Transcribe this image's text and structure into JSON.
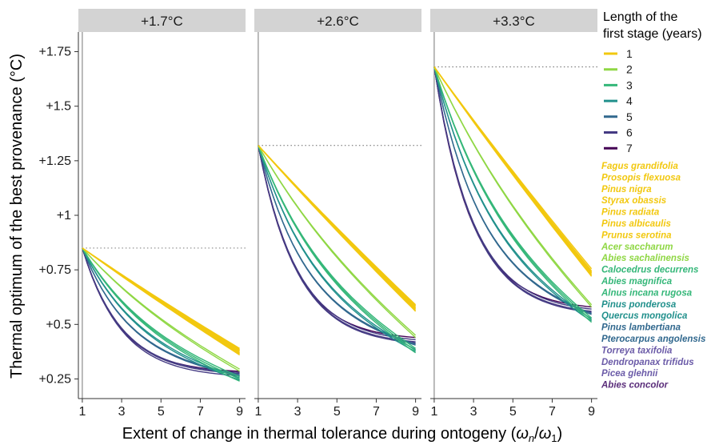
{
  "chart_data": {
    "type": "line",
    "xlabel": "Extent of change in thermal tolerance during ontogeny (",
    "xlabel_math": "ω",
    "xlabel_sub_n": "n",
    "xlabel_slash": "/",
    "xlabel_sub_1": "1",
    "xlabel_close": ")",
    "ylabel": "Thermal optimum of the best provenance (°C)",
    "x_ticks": [
      1,
      3,
      5,
      7,
      9
    ],
    "x_tick_labels": [
      "1",
      "3",
      "5",
      "7",
      "9"
    ],
    "xlim": [
      0.8,
      9.3
    ],
    "y_ticks": [
      0.25,
      0.5,
      0.75,
      1.0,
      1.25,
      1.5,
      1.75
    ],
    "y_tick_labels": [
      "+0.25",
      "+0.5",
      "+0.75",
      "+1",
      "+1.25",
      "+1.5",
      "+1.75"
    ],
    "ylim": [
      0.16,
      1.84
    ],
    "panels": [
      {
        "label": "+1.7°C",
        "start": 0.85
      },
      {
        "label": "+2.6°C",
        "start": 1.32
      },
      {
        "label": "+3.3°C",
        "start": 1.68
      }
    ],
    "legend": {
      "title_line1": "Length of the",
      "title_line2": "first stage (years)",
      "entries": [
        {
          "label": "1",
          "color": "#F2C80F"
        },
        {
          "label": "2",
          "color": "#8FD744"
        },
        {
          "label": "3",
          "color": "#35B779"
        },
        {
          "label": "4",
          "color": "#21908C"
        },
        {
          "label": "5",
          "color": "#31688E"
        },
        {
          "label": "6",
          "color": "#443A83"
        },
        {
          "label": "7",
          "color": "#440154"
        }
      ]
    },
    "species": [
      {
        "name": "Fagus grandifolia",
        "stage": 1,
        "color": "#F2C80F"
      },
      {
        "name": "Prosopis flexuosa",
        "stage": 1,
        "color": "#F2C80F"
      },
      {
        "name": "Pinus nigra",
        "stage": 1,
        "color": "#F2C80F"
      },
      {
        "name": "Styrax obassis",
        "stage": 1,
        "color": "#F2C80F"
      },
      {
        "name": "Pinus radiata",
        "stage": 1,
        "color": "#F2C80F"
      },
      {
        "name": "Pinus albicaulis",
        "stage": 1,
        "color": "#F2C80F"
      },
      {
        "name": "Prunus serotina",
        "stage": 1,
        "color": "#F2C80F"
      },
      {
        "name": "Acer saccharum",
        "stage": 2,
        "color": "#8FD744"
      },
      {
        "name": "Abies sachalinensis",
        "stage": 2,
        "color": "#8FD744"
      },
      {
        "name": "Calocedrus decurrens",
        "stage": 3,
        "color": "#35B779"
      },
      {
        "name": "Abies magnifica",
        "stage": 3,
        "color": "#35B779"
      },
      {
        "name": "Alnus incana rugosa",
        "stage": 3,
        "color": "#35B779"
      },
      {
        "name": "Pinus ponderosa",
        "stage": 4,
        "color": "#21908C"
      },
      {
        "name": "Quercus mongolica",
        "stage": 4,
        "color": "#21908C"
      },
      {
        "name": "Pinus lambertiana",
        "stage": 5,
        "color": "#31688E"
      },
      {
        "name": "Pterocarpus angolensis",
        "stage": 5,
        "color": "#31688E"
      },
      {
        "name": "Torreya taxifolia",
        "stage": 6,
        "color": "#6B5BA8"
      },
      {
        "name": "Dendropanax trifidus",
        "stage": 6,
        "color": "#6B5BA8"
      },
      {
        "name": "Picea glehnii",
        "stage": 6,
        "color": "#6B5BA8"
      },
      {
        "name": "Abies concolor",
        "stage": 7,
        "color": "#5A2D7A"
      }
    ],
    "end_values": [
      [
        0.385,
        0.375,
        0.365,
        0.39,
        0.38,
        0.37,
        0.36,
        0.295,
        0.285,
        0.26,
        0.25,
        0.24,
        0.255,
        0.245,
        0.27,
        0.265,
        0.28,
        0.275,
        0.265,
        0.285
      ],
      [
        0.59,
        0.58,
        0.575,
        0.57,
        0.585,
        0.565,
        0.56,
        0.45,
        0.44,
        0.39,
        0.38,
        0.37,
        0.385,
        0.375,
        0.41,
        0.405,
        0.43,
        0.42,
        0.415,
        0.44
      ],
      [
        0.755,
        0.74,
        0.73,
        0.735,
        0.745,
        0.725,
        0.72,
        0.59,
        0.58,
        0.53,
        0.52,
        0.51,
        0.525,
        0.515,
        0.55,
        0.545,
        0.57,
        0.56,
        0.555,
        0.58
      ]
    ],
    "curvature_by_stage": {
      "1": 0.18,
      "2": 0.42,
      "3": 0.62,
      "4": 0.72,
      "5": 0.85,
      "6": 1.0,
      "7": 1.05
    }
  }
}
